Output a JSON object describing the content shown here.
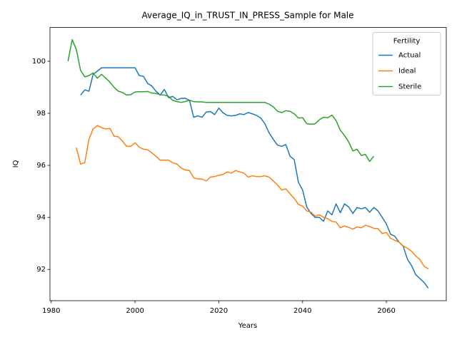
{
  "chart_data": {
    "type": "line",
    "title": "Average_IQ_in_TRUST_IN_PRESS_Sample for Male",
    "x_label": "Years",
    "y_label": "IQ",
    "legend_title": "Fertility",
    "legend_position": "upper right",
    "x": [
      1984,
      1985,
      1986,
      1987,
      1988,
      1989,
      1990,
      1991,
      1992,
      1993,
      1994,
      1995,
      1996,
      1997,
      1998,
      1999,
      2000,
      2001,
      2002,
      2003,
      2004,
      2005,
      2006,
      2007,
      2008,
      2009,
      2010,
      2011,
      2012,
      2013,
      2014,
      2015,
      2016,
      2017,
      2018,
      2019,
      2020,
      2021,
      2022,
      2023,
      2024,
      2025,
      2026,
      2027,
      2028,
      2029,
      2030,
      2031,
      2032,
      2033,
      2034,
      2035,
      2036,
      2037,
      2038,
      2039,
      2040,
      2041,
      2042,
      2043,
      2044,
      2045,
      2046,
      2047,
      2048,
      2049,
      2050,
      2051,
      2052,
      2053,
      2054,
      2055,
      2056,
      2057,
      2058,
      2059,
      2060,
      2061,
      2062,
      2063,
      2064,
      2065,
      2066,
      2067,
      2068,
      2069,
      2070
    ],
    "series": [
      {
        "name": "Actual",
        "color": "#1f77b4",
        "values": [
          null,
          null,
          null,
          98.7,
          98.9,
          98.85,
          99.5,
          99.62,
          99.75,
          99.75,
          99.75,
          99.75,
          99.75,
          99.75,
          99.75,
          99.75,
          99.75,
          99.45,
          99.42,
          99.15,
          99.05,
          98.85,
          98.7,
          98.92,
          98.6,
          98.65,
          98.52,
          98.57,
          98.58,
          98.5,
          97.85,
          97.9,
          97.85,
          98.05,
          98.07,
          97.95,
          98.2,
          98.02,
          97.92,
          97.9,
          97.92,
          97.98,
          97.95,
          98.03,
          97.98,
          97.92,
          97.82,
          97.6,
          97.25,
          97.0,
          96.78,
          96.73,
          96.8,
          96.35,
          96.22,
          95.35,
          95.05,
          94.4,
          94.15,
          94.0,
          94.0,
          93.85,
          94.25,
          94.1,
          94.52,
          94.18,
          94.52,
          94.4,
          94.15,
          94.38,
          94.33,
          94.38,
          94.2,
          94.38,
          94.25,
          94.0,
          93.75,
          93.35,
          93.28,
          93.05,
          92.9,
          92.4,
          92.15,
          91.8,
          91.65,
          91.5,
          91.28
        ]
      },
      {
        "name": "Ideal",
        "color": "#ff7f0e",
        "values": [
          null,
          null,
          96.68,
          96.05,
          96.1,
          97.0,
          97.4,
          97.53,
          97.45,
          97.4,
          97.42,
          97.12,
          97.1,
          96.93,
          96.73,
          96.73,
          96.87,
          96.7,
          96.62,
          96.6,
          96.48,
          96.35,
          96.2,
          96.2,
          96.2,
          96.1,
          96.05,
          95.9,
          95.82,
          95.8,
          95.52,
          95.48,
          95.47,
          95.4,
          95.55,
          95.57,
          95.62,
          95.65,
          95.75,
          95.7,
          95.8,
          95.75,
          95.7,
          95.55,
          95.6,
          95.57,
          95.57,
          95.6,
          95.55,
          95.4,
          95.25,
          95.05,
          95.1,
          94.9,
          94.73,
          94.5,
          94.43,
          94.25,
          94.2,
          94.05,
          94.1,
          94.0,
          93.95,
          93.85,
          93.82,
          93.6,
          93.67,
          93.62,
          93.55,
          93.63,
          93.6,
          93.7,
          93.65,
          93.58,
          93.57,
          93.38,
          93.42,
          93.2,
          93.12,
          93.05,
          92.9,
          92.82,
          92.7,
          92.52,
          92.38,
          92.12,
          92.02
        ]
      },
      {
        "name": "Sterile",
        "color": "#2ca02c",
        "values": [
          100.0,
          100.83,
          100.45,
          99.65,
          99.4,
          99.45,
          99.55,
          99.35,
          99.5,
          99.35,
          99.2,
          99.0,
          98.85,
          98.8,
          98.7,
          98.72,
          98.82,
          98.83,
          98.83,
          98.84,
          98.78,
          98.76,
          98.72,
          98.7,
          98.65,
          98.5,
          98.45,
          98.42,
          98.45,
          98.5,
          98.45,
          98.44,
          98.44,
          98.42,
          98.42,
          98.42,
          98.42,
          98.42,
          98.42,
          98.42,
          98.42,
          98.42,
          98.42,
          98.42,
          98.42,
          98.42,
          98.42,
          98.42,
          98.35,
          98.25,
          98.08,
          98.03,
          98.1,
          98.08,
          97.98,
          97.82,
          97.83,
          97.6,
          97.58,
          97.6,
          97.75,
          97.85,
          97.83,
          97.93,
          97.72,
          97.35,
          97.15,
          96.9,
          96.55,
          96.62,
          96.38,
          96.42,
          96.15,
          96.35,
          null,
          null,
          null,
          null,
          null,
          null,
          null,
          null,
          null,
          null,
          null,
          null,
          null
        ]
      }
    ],
    "xlim": [
      1979.7,
      2074.3
    ],
    "xticks": [
      1980,
      2000,
      2020,
      2040,
      2060
    ],
    "ylim": [
      90.8,
      101.3
    ],
    "yticks": [
      92,
      94,
      96,
      98,
      100
    ],
    "grid": false
  }
}
